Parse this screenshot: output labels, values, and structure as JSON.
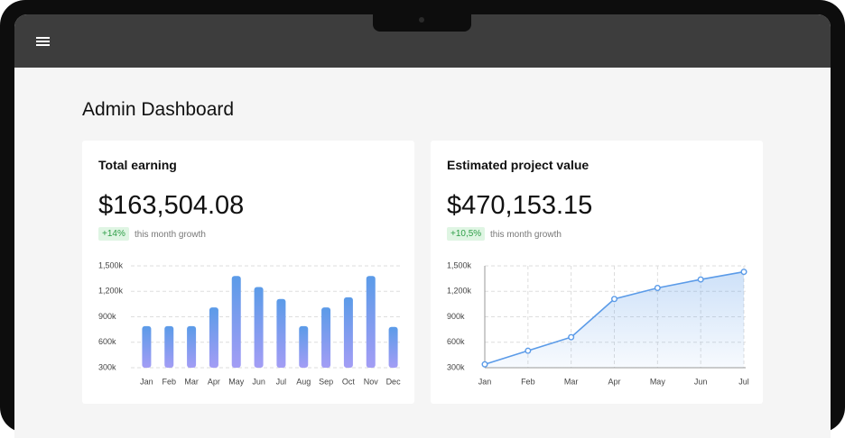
{
  "header": {
    "title": "Admin Dashboard"
  },
  "cards": [
    {
      "title": "Total earning",
      "amount": "$163,504.08",
      "growth": "+14%",
      "growth_text": "this month growth"
    },
    {
      "title": "Estimated project value",
      "amount": "$470,153.15",
      "growth": "+10,5%",
      "growth_text": "this month growth"
    }
  ],
  "chart_data": [
    {
      "type": "bar",
      "categories": [
        "Jan",
        "Feb",
        "Mar",
        "Apr",
        "May",
        "Jun",
        "Jul",
        "Aug",
        "Sep",
        "Oct",
        "Nov",
        "Dec"
      ],
      "values": [
        790,
        790,
        790,
        1010,
        1380,
        1250,
        1110,
        790,
        1010,
        1130,
        1380,
        780
      ],
      "gradient": [
        "#5b9be8",
        "#a39df5"
      ],
      "ylim": [
        300,
        1500
      ],
      "yticks": [
        {
          "value": 300,
          "label": "300k"
        },
        {
          "value": 600,
          "label": "600k"
        },
        {
          "value": 900,
          "label": "900k"
        },
        {
          "value": 1200,
          "label": "1,200k"
        },
        {
          "value": 1500,
          "label": "1,500k"
        }
      ],
      "grid": true
    },
    {
      "type": "line",
      "categories": [
        "Jan",
        "Feb",
        "Mar",
        "Apr",
        "May",
        "Jun",
        "Jul"
      ],
      "values": [
        340,
        500,
        660,
        1110,
        1240,
        1340,
        1430
      ],
      "color": "#5b9be8",
      "ylim": [
        300,
        1500
      ],
      "yticks": [
        {
          "value": 300,
          "label": "300k"
        },
        {
          "value": 600,
          "label": "600k"
        },
        {
          "value": 900,
          "label": "900k"
        },
        {
          "value": 1200,
          "label": "1,200k"
        },
        {
          "value": 1500,
          "label": "1,500k"
        }
      ],
      "grid": true
    }
  ]
}
